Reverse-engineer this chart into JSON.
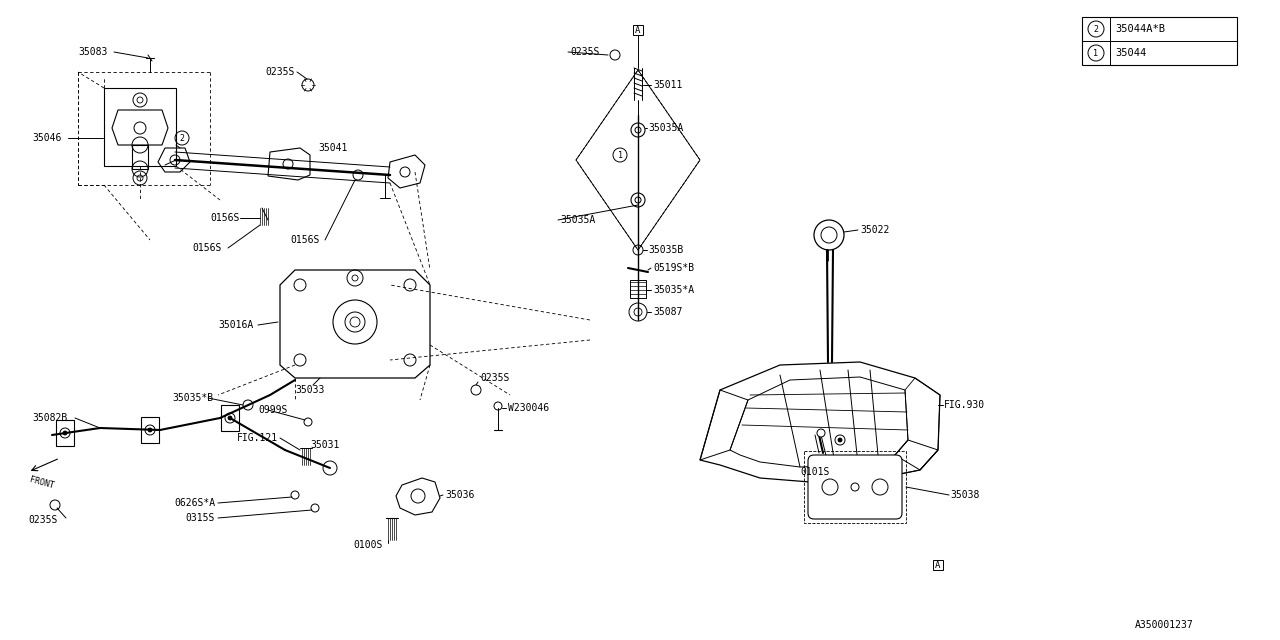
{
  "bg_color": "#ffffff",
  "fig_id": "A350001237",
  "legend": [
    {
      "num": "1",
      "part": "35044"
    },
    {
      "num": "2",
      "part": "35044A*B"
    }
  ]
}
